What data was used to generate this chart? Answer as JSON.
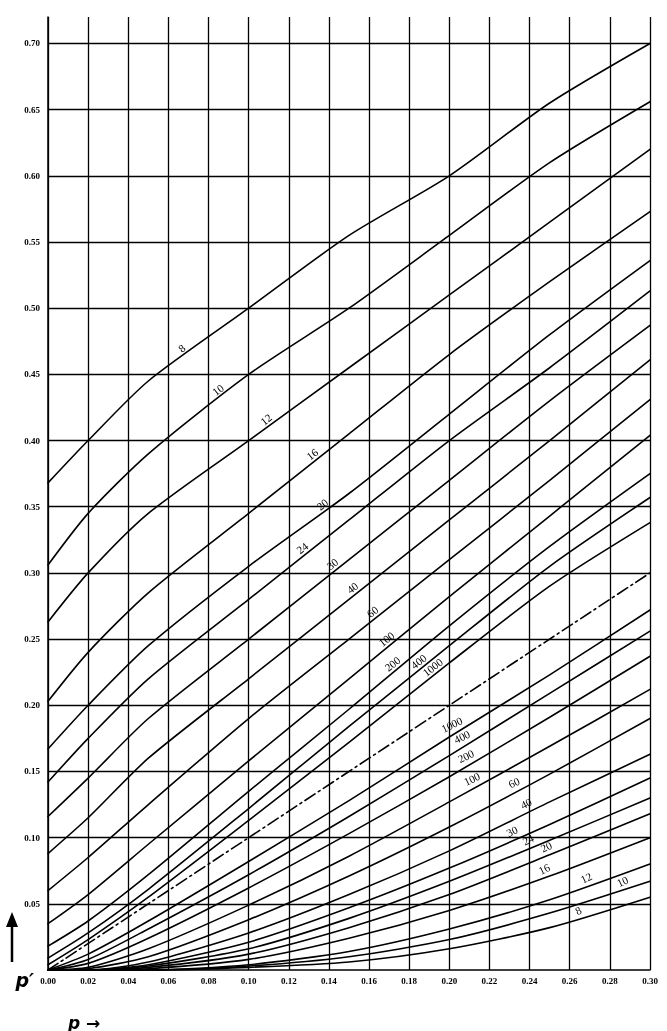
{
  "chart_data": {
    "type": "line",
    "xlabel": "p →",
    "ylabel": "p′",
    "grid": true,
    "marker": "none",
    "x": [
      0,
      0.02,
      0.05,
      0.1,
      0.15,
      0.2,
      0.25,
      0.3
    ],
    "xlim": [
      0,
      0.3
    ],
    "ylim": [
      0,
      0.72
    ],
    "xticks": [
      {
        "value": 0,
        "label": "0.00"
      },
      {
        "value": 0.02,
        "label": "0.02"
      },
      {
        "value": 0.04,
        "label": "0.04"
      },
      {
        "value": 0.06,
        "label": "0.06"
      },
      {
        "value": 0.08,
        "label": "0.08"
      },
      {
        "value": 0.1,
        "label": "0.10"
      },
      {
        "value": 0.12,
        "label": "0.12"
      },
      {
        "value": 0.14,
        "label": "0.14"
      },
      {
        "value": 0.16,
        "label": "0.16"
      },
      {
        "value": 0.18,
        "label": "0.18"
      },
      {
        "value": 0.2,
        "label": "0.20"
      },
      {
        "value": 0.22,
        "label": "0.22"
      },
      {
        "value": 0.24,
        "label": "0.24"
      },
      {
        "value": 0.26,
        "label": "0.26"
      },
      {
        "value": 0.28,
        "label": "0.28"
      },
      {
        "value": 0.3,
        "label": "0.30"
      }
    ],
    "yticks": [
      {
        "value": 0.05,
        "label": "0.05"
      },
      {
        "value": 0.1,
        "label": "0.10"
      },
      {
        "value": 0.15,
        "label": "0.15"
      },
      {
        "value": 0.2,
        "label": "0.20"
      },
      {
        "value": 0.25,
        "label": "0.25"
      },
      {
        "value": 0.3,
        "label": "0.30"
      },
      {
        "value": 0.35,
        "label": "0.35"
      },
      {
        "value": 0.4,
        "label": "0.40"
      },
      {
        "value": 0.45,
        "label": "0.45"
      },
      {
        "value": 0.5,
        "label": "0.50"
      },
      {
        "value": 0.55,
        "label": "0.55"
      },
      {
        "value": 0.6,
        "label": "0.60"
      },
      {
        "value": 0.65,
        "label": "0.65"
      },
      {
        "value": 0.7,
        "label": "0.70"
      }
    ],
    "series": [
      {
        "name": "8",
        "color": "#000000",
        "values": [
          0.368,
          0.4,
          0.445,
          0.5,
          0.555,
          0.6,
          0.655,
          0.7
        ]
      },
      {
        "name": "10",
        "color": "#000000",
        "values": [
          0.306,
          0.345,
          0.39,
          0.45,
          0.5,
          0.555,
          0.61,
          0.656
        ]
      },
      {
        "name": "12",
        "color": "#000000",
        "values": [
          0.263,
          0.3,
          0.345,
          0.4,
          0.455,
          0.51,
          0.565,
          0.62
        ]
      },
      {
        "name": "16",
        "color": "#000000",
        "values": [
          0.203,
          0.24,
          0.285,
          0.345,
          0.405,
          0.465,
          0.52,
          0.573
        ]
      },
      {
        "name": "20",
        "color": "#000000",
        "values": [
          0.167,
          0.2,
          0.245,
          0.305,
          0.36,
          0.42,
          0.48,
          0.536
        ]
      },
      {
        "name": "24",
        "color": "#000000",
        "values": [
          0.142,
          0.175,
          0.22,
          0.28,
          0.34,
          0.4,
          0.455,
          0.513
        ]
      },
      {
        "name": "30",
        "color": "#000000",
        "values": [
          0.116,
          0.145,
          0.19,
          0.25,
          0.31,
          0.37,
          0.43,
          0.487
        ]
      },
      {
        "name": "40",
        "color": "#000000",
        "values": [
          0.088,
          0.115,
          0.16,
          0.22,
          0.28,
          0.34,
          0.4,
          0.461
        ]
      },
      {
        "name": "60",
        "color": "#000000",
        "values": [
          0.06,
          0.085,
          0.125,
          0.19,
          0.25,
          0.31,
          0.37,
          0.431
        ]
      },
      {
        "name": "100",
        "color": "#000000",
        "values": [
          0.035,
          0.057,
          0.095,
          0.158,
          0.22,
          0.282,
          0.343,
          0.404
        ]
      },
      {
        "name": "200",
        "color": "#000000",
        "values": [
          0.018,
          0.037,
          0.072,
          0.135,
          0.197,
          0.26,
          0.32,
          0.375
        ]
      },
      {
        "name": "400",
        "color": "#000000",
        "values": [
          0.009,
          0.028,
          0.061,
          0.122,
          0.184,
          0.245,
          0.305,
          0.357
        ]
      },
      {
        "name": "1000",
        "color": "#000000",
        "values": [
          0.004,
          0.023,
          0.055,
          0.113,
          0.172,
          0.232,
          0.29,
          0.338
        ]
      },
      {
        "name": "8",
        "color": "#000000",
        "values": [
          0,
          0,
          0,
          0.002,
          0.006,
          0.016,
          0.032,
          0.055
        ]
      },
      {
        "name": "10",
        "color": "#000000",
        "values": [
          0,
          0,
          0,
          0.003,
          0.01,
          0.023,
          0.043,
          0.067
        ]
      },
      {
        "name": "12",
        "color": "#000000",
        "values": [
          0,
          0,
          0,
          0.004,
          0.014,
          0.031,
          0.053,
          0.08
        ]
      },
      {
        "name": "16",
        "color": "#000000",
        "values": [
          0,
          0,
          0.001,
          0.008,
          0.024,
          0.045,
          0.071,
          0.1
        ]
      },
      {
        "name": "20",
        "color": "#000000",
        "values": [
          0,
          0,
          0.002,
          0.012,
          0.032,
          0.057,
          0.087,
          0.118
        ]
      },
      {
        "name": "24",
        "color": "#000000",
        "values": [
          0,
          0,
          0.003,
          0.016,
          0.039,
          0.067,
          0.098,
          0.13
        ]
      },
      {
        "name": "30",
        "color": "#000000",
        "values": [
          0,
          0,
          0.004,
          0.021,
          0.047,
          0.077,
          0.11,
          0.145
        ]
      },
      {
        "name": "40",
        "color": "#000000",
        "values": [
          0,
          0,
          0.006,
          0.028,
          0.057,
          0.09,
          0.127,
          0.163
        ]
      },
      {
        "name": "60",
        "color": "#000000",
        "values": [
          0,
          0.001,
          0.01,
          0.038,
          0.071,
          0.108,
          0.148,
          0.19
        ]
      },
      {
        "name": "100",
        "color": "#000000",
        "values": [
          0,
          0.002,
          0.016,
          0.049,
          0.086,
          0.127,
          0.169,
          0.212
        ]
      },
      {
        "name": "200",
        "color": "#000000",
        "values": [
          0,
          0.005,
          0.024,
          0.062,
          0.103,
          0.146,
          0.191,
          0.237
        ]
      },
      {
        "name": "400",
        "color": "#000000",
        "values": [
          0,
          0.008,
          0.031,
          0.072,
          0.116,
          0.162,
          0.209,
          0.256
        ]
      },
      {
        "name": "1000",
        "color": "#000000",
        "values": [
          0,
          0.012,
          0.037,
          0.082,
          0.128,
          0.176,
          0.223,
          0.272
        ]
      },
      {
        "color": "#000000",
        "line_style": "dashed",
        "x": [
          0,
          0.3
        ],
        "values": [
          0,
          0.3
        ]
      }
    ]
  }
}
